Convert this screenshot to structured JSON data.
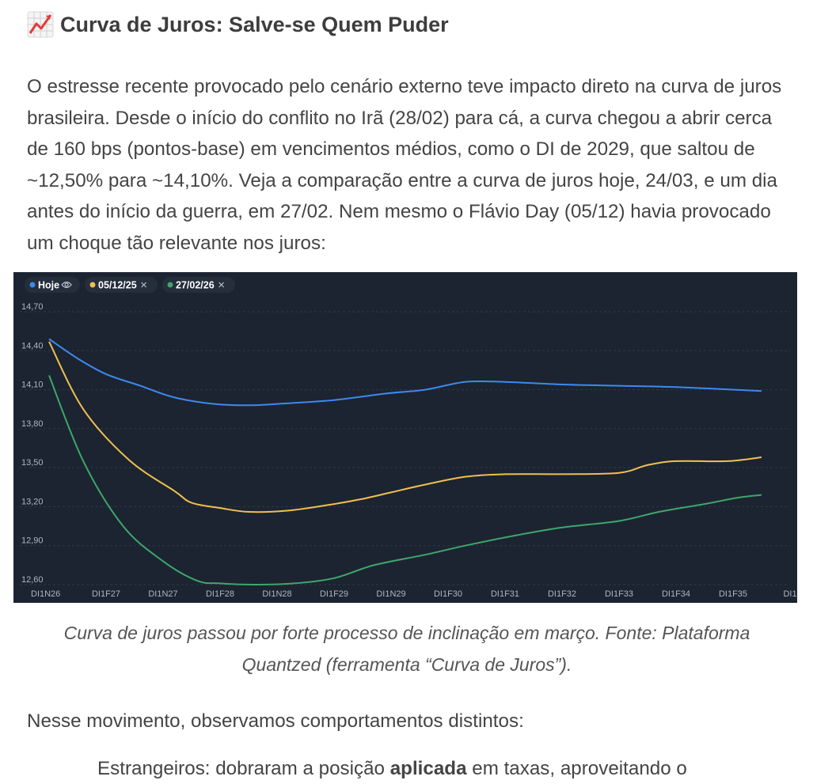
{
  "heading": {
    "icon": "chart-increasing-icon",
    "title": "Curva de Juros: Salve-se Quem Puder"
  },
  "intro": "O estresse recente provocado pelo cenário externo teve impacto direto na curva de juros brasileira. Desde o início do conflito no Irã (28/02) para cá, a curva chegou a abrir cerca de 160 bps (pontos-base) em vencimentos médios, como o DI de 2029, que saltou de ~12,50% para ~14,10%. Veja a comparação entre a curva de juros hoje, 24/03, e um dia antes do início da guerra, em 27/02. Nem mesmo o Flávio Day (05/12) havia provocado um choque tão relevante nos juros:",
  "caption": "Curva de juros passou por forte processo de inclinação em março. Fonte: Plataforma Quantzed (ferramenta “Curva de Juros”).",
  "paragraph2": "Nesse movimento, observamos comportamentos distintos:",
  "cut_line": {
    "before": "Estrangeiros: dobraram a posição ",
    "bold": "aplicada",
    "after": " em taxas, aproveitando o"
  },
  "chart_data": {
    "type": "line",
    "background": "#1c2431",
    "categories": [
      "DI1N26",
      "DI1F27",
      "DI1N27",
      "DI1F28",
      "DI1N28",
      "DI1F29",
      "DI1N29",
      "DI1F30",
      "DI1F31",
      "DI1F32",
      "DI1F33",
      "DI1F34",
      "DI1F35",
      "DI1"
    ],
    "y_ticks": [
      "14,70",
      "14,40",
      "14,10",
      "13,80",
      "13,50",
      "13,20",
      "12,90",
      "12,60"
    ],
    "ylim": [
      12.6,
      14.7
    ],
    "grid": true,
    "legend_position": "top-left",
    "series": [
      {
        "name": "Hoje",
        "color": "#3b8af0",
        "legend_icon": "eye-icon",
        "points": [
          [
            0,
            14.49
          ],
          [
            0.5,
            14.34
          ],
          [
            1,
            14.22
          ],
          [
            1.6,
            14.13
          ],
          [
            2.2,
            14.04
          ],
          [
            2.9,
            13.99
          ],
          [
            3.5,
            13.98
          ],
          [
            4,
            13.99
          ],
          [
            5,
            14.02
          ],
          [
            5.9,
            14.07
          ],
          [
            6.6,
            14.1
          ],
          [
            7.3,
            14.16
          ],
          [
            8,
            14.16
          ],
          [
            9,
            14.14
          ],
          [
            10,
            14.13
          ],
          [
            11,
            14.12
          ],
          [
            12.5,
            14.09
          ]
        ]
      },
      {
        "name": "05/12/25",
        "color": "#f0c050",
        "legend_icon": "close-icon",
        "points": [
          [
            0,
            14.47
          ],
          [
            0.6,
            13.95
          ],
          [
            1.4,
            13.56
          ],
          [
            2.2,
            13.32
          ],
          [
            2.5,
            13.23
          ],
          [
            3,
            13.19
          ],
          [
            3.5,
            13.16
          ],
          [
            4.2,
            13.17
          ],
          [
            5,
            13.22
          ],
          [
            5.5,
            13.26
          ],
          [
            6,
            13.31
          ],
          [
            6.6,
            13.37
          ],
          [
            7.3,
            13.43
          ],
          [
            8,
            13.45
          ],
          [
            9,
            13.45
          ],
          [
            10,
            13.46
          ],
          [
            10.5,
            13.52
          ],
          [
            11,
            13.55
          ],
          [
            11.9,
            13.55
          ],
          [
            12.5,
            13.58
          ]
        ]
      },
      {
        "name": "27/02/26",
        "color": "#3fa66b",
        "legend_icon": "close-icon",
        "points": [
          [
            0,
            14.21
          ],
          [
            0.6,
            13.55
          ],
          [
            1.3,
            13.05
          ],
          [
            2,
            12.78
          ],
          [
            2.6,
            12.63
          ],
          [
            3,
            12.61
          ],
          [
            3.6,
            12.6
          ],
          [
            4.3,
            12.61
          ],
          [
            5,
            12.65
          ],
          [
            5.7,
            12.75
          ],
          [
            6.6,
            12.83
          ],
          [
            7.3,
            12.9
          ],
          [
            8.2,
            12.98
          ],
          [
            9,
            13.04
          ],
          [
            10,
            13.09
          ],
          [
            10.7,
            13.16
          ],
          [
            11.5,
            13.22
          ],
          [
            12.1,
            13.27
          ],
          [
            12.5,
            13.29
          ]
        ]
      }
    ]
  }
}
